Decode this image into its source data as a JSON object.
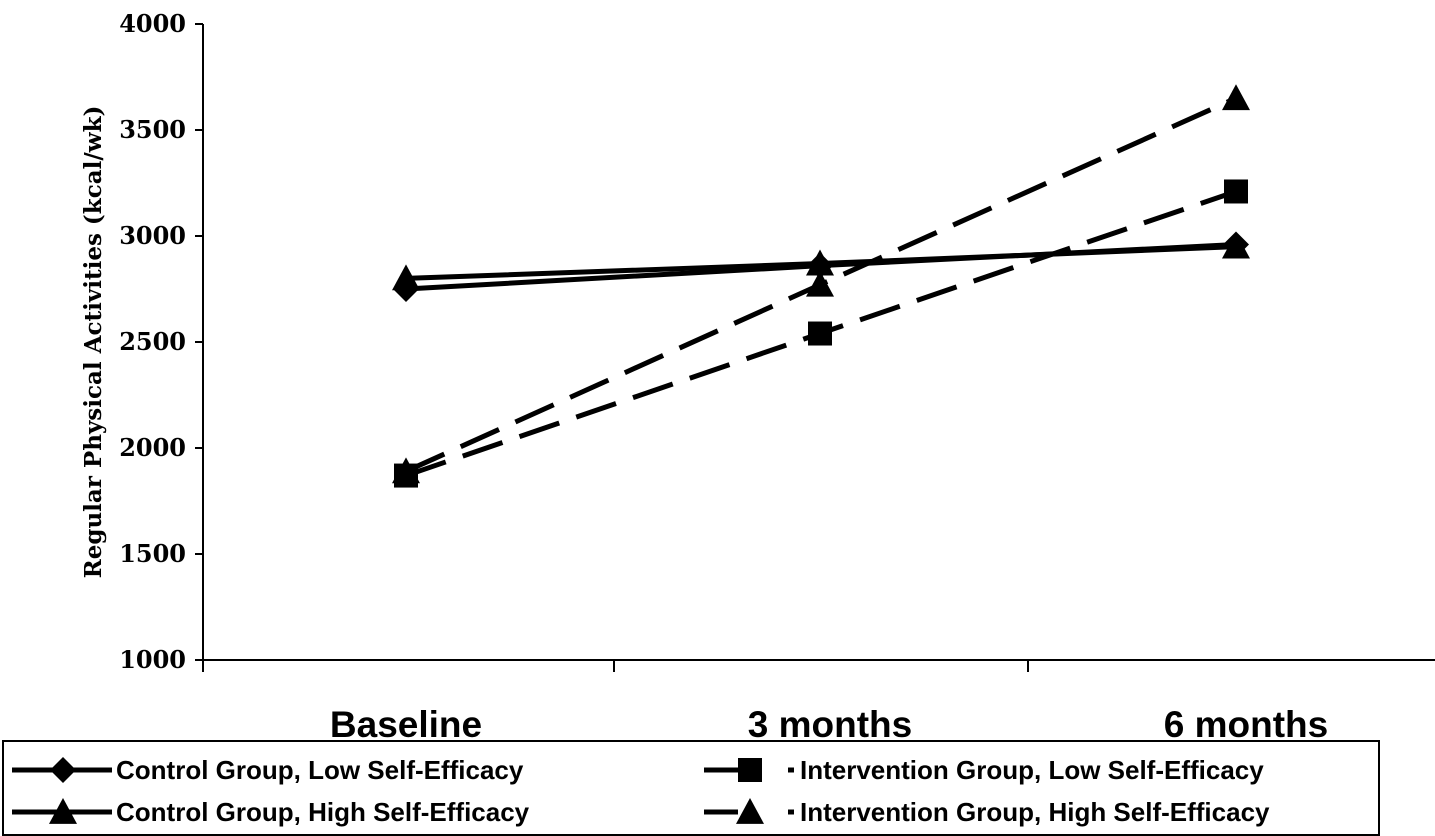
{
  "chart_data": {
    "type": "line",
    "title": "",
    "xlabel": "",
    "ylabel": "Regular Physical Activities (kcal/wk)",
    "categories": [
      "Baseline",
      "3 months",
      "6 months"
    ],
    "ylim": [
      1000,
      4000
    ],
    "yticks": [
      1000,
      1500,
      2000,
      2500,
      3000,
      3500,
      4000
    ],
    "grid": false,
    "legend_position": "bottom",
    "series": [
      {
        "name": "Control Group, Low Self-Efficacy",
        "values": [
          2750,
          2860,
          2960
        ],
        "marker": "diamond",
        "line_style": "solid"
      },
      {
        "name": "Intervention Group, Low Self-Efficacy",
        "values": [
          1870,
          2540,
          3210
        ],
        "marker": "square",
        "line_style": "dashed"
      },
      {
        "name": "Control Group, High Self-Efficacy",
        "values": [
          2800,
          2870,
          2950
        ],
        "marker": "triangle",
        "line_style": "solid"
      },
      {
        "name": "Intervention Group, High Self-Efficacy",
        "values": [
          1890,
          2770,
          3650
        ],
        "marker": "triangle",
        "line_style": "dashed"
      }
    ]
  }
}
